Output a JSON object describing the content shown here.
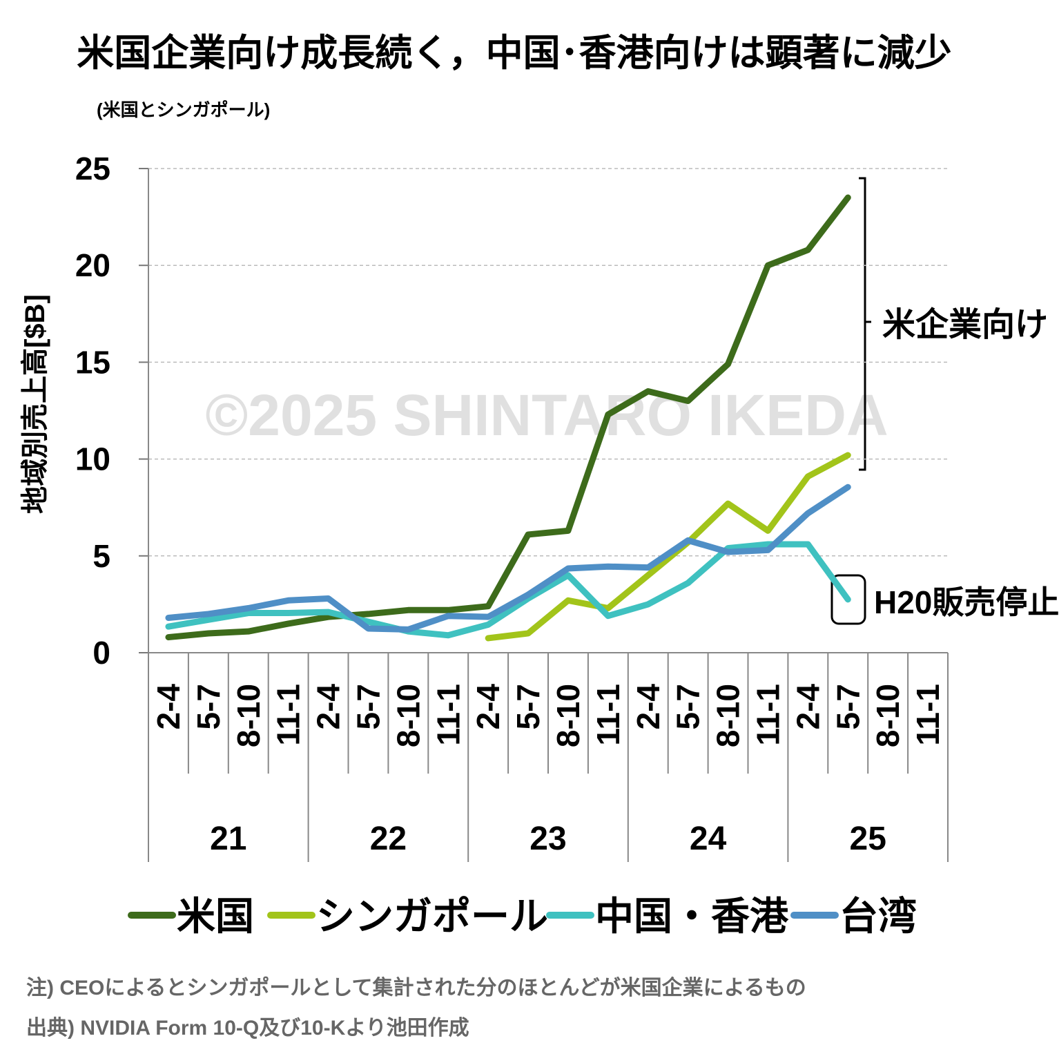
{
  "chart_data": {
    "type": "line",
    "title": "米国企業向け成長続く，中国･香港向けは顕著に減少",
    "subtitle": "(米国とシンガポール)",
    "y_label": "地域別売上高[$B]",
    "categories": [
      "2-4",
      "5-7",
      "8-10",
      "11-1",
      "2-4",
      "5-7",
      "8-10",
      "11-1",
      "2-4",
      "5-7",
      "8-10",
      "11-1",
      "2-4",
      "5-7",
      "8-10",
      "11-1",
      "2-4",
      "5-7",
      "8-10",
      "11-1"
    ],
    "year_labels": [
      "21",
      "22",
      "23",
      "24",
      "25"
    ],
    "series": [
      {
        "name": "米国",
        "color": "#3d6b1b",
        "values": [
          0.8,
          1.0,
          1.1,
          1.5,
          1.85,
          2.0,
          2.2,
          2.2,
          2.4,
          6.1,
          6.3,
          12.3,
          13.5,
          13.0,
          14.9,
          20.0,
          20.8,
          23.5,
          null,
          null
        ]
      },
      {
        "name": "シンガポール",
        "color": "#a2c41a",
        "values": [
          null,
          null,
          null,
          null,
          null,
          null,
          null,
          null,
          0.75,
          1.0,
          2.7,
          2.3,
          4.0,
          5.7,
          7.7,
          6.3,
          9.1,
          10.2,
          null,
          null
        ]
      },
      {
        "name": "中国・香港",
        "color": "#3fc1c0",
        "values": [
          1.35,
          1.7,
          2.05,
          2.05,
          2.1,
          1.6,
          1.1,
          0.9,
          1.45,
          2.8,
          4.0,
          1.9,
          2.5,
          3.6,
          5.4,
          5.6,
          5.6,
          2.75,
          null,
          null
        ]
      },
      {
        "name": "台湾",
        "color": "#4f8fc6",
        "values": [
          1.8,
          2.0,
          2.3,
          2.7,
          2.8,
          1.25,
          1.2,
          1.9,
          1.85,
          3.0,
          4.35,
          4.45,
          4.4,
          5.8,
          5.2,
          5.3,
          7.2,
          8.55,
          null,
          null
        ]
      }
    ],
    "ylim": [
      0,
      25
    ],
    "yticks": [
      0,
      5,
      10,
      15,
      20,
      25
    ],
    "grid": true,
    "annotations": [
      "米企業向け",
      "H20販売停止"
    ],
    "watermark": "©2025 SHINTARO IKEDA",
    "notes": [
      "注) CEOによるとシンガポールとして集計された分のほとんどが米国企業によるもの",
      "出典) NVIDIA Form 10-Q及び10-Kより池田作成"
    ]
  }
}
